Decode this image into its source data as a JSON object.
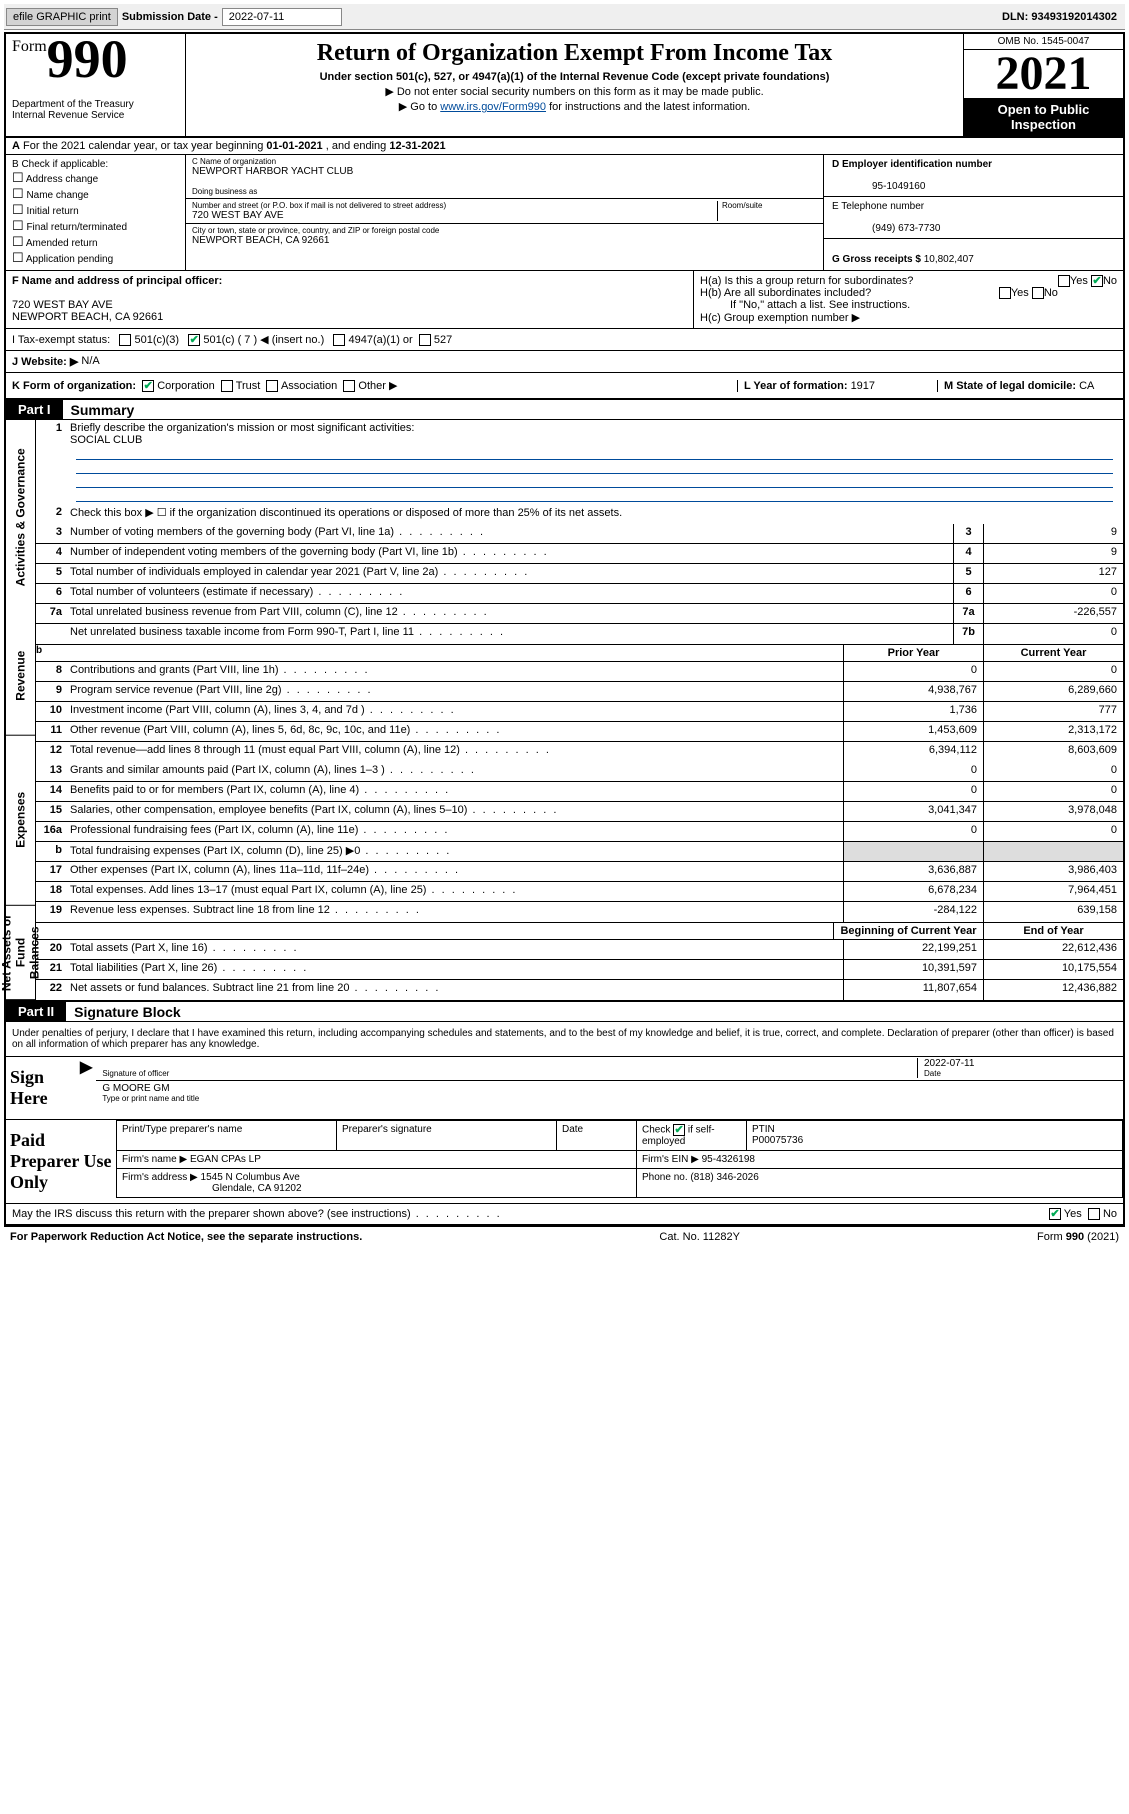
{
  "topbar": {
    "efile_btn": "efile GRAPHIC print",
    "submission_label": "Submission Date - ",
    "submission_date": "2022-07-11",
    "dln_label": "DLN: ",
    "dln": "93493192014302"
  },
  "header": {
    "form_word": "Form",
    "form_num": "990",
    "dept": "Department of the Treasury",
    "irs": "Internal Revenue Service",
    "title": "Return of Organization Exempt From Income Tax",
    "subtitle": "Under section 501(c), 527, or 4947(a)(1) of the Internal Revenue Code (except private foundations)",
    "note1": "▶ Do not enter social security numbers on this form as it may be made public.",
    "note2_pre": "▶ Go to ",
    "note2_link": "www.irs.gov/Form990",
    "note2_post": " for instructions and the latest information.",
    "omb": "OMB No. 1545-0047",
    "year": "2021",
    "inspect": "Open to Public Inspection"
  },
  "row_a": {
    "text": "For the 2021 calendar year, or tax year beginning ",
    "begin": "01-01-2021",
    "mid": " , and ending ",
    "end": "12-31-2021"
  },
  "col_b": {
    "title": "B Check if applicable:",
    "items": [
      "Address change",
      "Name change",
      "Initial return",
      "Final return/terminated",
      "Amended return",
      "Application pending"
    ]
  },
  "col_c": {
    "name_label": "C Name of organization",
    "name": "NEWPORT HARBOR YACHT CLUB",
    "dba_label": "Doing business as",
    "street_label": "Number and street (or P.O. box if mail is not delivered to street address)",
    "room_label": "Room/suite",
    "street": "720 WEST BAY AVE",
    "city_label": "City or town, state or province, country, and ZIP or foreign postal code",
    "city": "NEWPORT BEACH, CA  92661"
  },
  "col_de": {
    "d_label": "D Employer identification number",
    "d_val": "95-1049160",
    "e_label": "E Telephone number",
    "e_val": "(949) 673-7730",
    "g_label": "G Gross receipts $ ",
    "g_val": "10,802,407"
  },
  "fgh": {
    "f_label": "F Name and address of principal officer:",
    "f_addr1": "720 WEST BAY AVE",
    "f_addr2": "NEWPORT BEACH, CA  92661",
    "ha": "H(a)  Is this a group return for subordinates?",
    "hb": "H(b)  Are all subordinates included?",
    "hb_note": "If \"No,\" attach a list. See instructions.",
    "hc": "H(c)  Group exemption number ▶",
    "yes": "Yes",
    "no": "No"
  },
  "row_i": {
    "label": "I   Tax-exempt status:",
    "o1": "501(c)(3)",
    "o2": "501(c) ( 7 ) ◀ (insert no.)",
    "o3": "4947(a)(1) or",
    "o4": "527"
  },
  "row_j": {
    "label": "J   Website: ▶",
    "val": "N/A"
  },
  "row_k": {
    "label": "K Form of organization:",
    "corp": "Corporation",
    "trust": "Trust",
    "assoc": "Association",
    "other": "Other ▶",
    "l_label": "L Year of formation: ",
    "l_val": "1917",
    "m_label": "M State of legal domicile: ",
    "m_val": "CA"
  },
  "part1": {
    "tag": "Part I",
    "title": "Summary"
  },
  "vlabels": [
    "Activities & Governance",
    "Revenue",
    "Expenses",
    "Net Assets or Fund Balances"
  ],
  "mission": {
    "num": "1",
    "label": "Briefly describe the organization's mission or most significant activities:",
    "val": "SOCIAL CLUB"
  },
  "line2": {
    "num": "2",
    "text": "Check this box ▶ ☐  if the organization discontinued its operations or disposed of more than 25% of its net assets."
  },
  "govRows": [
    {
      "n": "3",
      "d": "Number of voting members of the governing body (Part VI, line 1a)",
      "b": "3",
      "v": "9"
    },
    {
      "n": "4",
      "d": "Number of independent voting members of the governing body (Part VI, line 1b)",
      "b": "4",
      "v": "9"
    },
    {
      "n": "5",
      "d": "Total number of individuals employed in calendar year 2021 (Part V, line 2a)",
      "b": "5",
      "v": "127"
    },
    {
      "n": "6",
      "d": "Total number of volunteers (estimate if necessary)",
      "b": "6",
      "v": "0"
    },
    {
      "n": "7a",
      "d": "Total unrelated business revenue from Part VIII, column (C), line 12",
      "b": "7a",
      "v": "-226,557"
    },
    {
      "n": "",
      "d": "Net unrelated business taxable income from Form 990-T, Part I, line 11",
      "b": "7b",
      "v": "0"
    }
  ],
  "colHdr": {
    "b": "b",
    "prior": "Prior Year",
    "current": "Current Year",
    "boy": "Beginning of Current Year",
    "eoy": "End of Year"
  },
  "revRows": [
    {
      "n": "8",
      "d": "Contributions and grants (Part VIII, line 1h)",
      "p": "0",
      "c": "0"
    },
    {
      "n": "9",
      "d": "Program service revenue (Part VIII, line 2g)",
      "p": "4,938,767",
      "c": "6,289,660"
    },
    {
      "n": "10",
      "d": "Investment income (Part VIII, column (A), lines 3, 4, and 7d )",
      "p": "1,736",
      "c": "777"
    },
    {
      "n": "11",
      "d": "Other revenue (Part VIII, column (A), lines 5, 6d, 8c, 9c, 10c, and 11e)",
      "p": "1,453,609",
      "c": "2,313,172"
    },
    {
      "n": "12",
      "d": "Total revenue—add lines 8 through 11 (must equal Part VIII, column (A), line 12)",
      "p": "6,394,112",
      "c": "8,603,609"
    }
  ],
  "expRows": [
    {
      "n": "13",
      "d": "Grants and similar amounts paid (Part IX, column (A), lines 1–3 )",
      "p": "0",
      "c": "0"
    },
    {
      "n": "14",
      "d": "Benefits paid to or for members (Part IX, column (A), line 4)",
      "p": "0",
      "c": "0"
    },
    {
      "n": "15",
      "d": "Salaries, other compensation, employee benefits (Part IX, column (A), lines 5–10)",
      "p": "3,041,347",
      "c": "3,978,048"
    },
    {
      "n": "16a",
      "d": "Professional fundraising fees (Part IX, column (A), line 11e)",
      "p": "0",
      "c": "0"
    },
    {
      "n": "b",
      "d": "Total fundraising expenses (Part IX, column (D), line 25) ▶0",
      "p": "",
      "c": "",
      "grey": true
    },
    {
      "n": "17",
      "d": "Other expenses (Part IX, column (A), lines 11a–11d, 11f–24e)",
      "p": "3,636,887",
      "c": "3,986,403"
    },
    {
      "n": "18",
      "d": "Total expenses. Add lines 13–17 (must equal Part IX, column (A), line 25)",
      "p": "6,678,234",
      "c": "7,964,451"
    },
    {
      "n": "19",
      "d": "Revenue less expenses. Subtract line 18 from line 12",
      "p": "-284,122",
      "c": "639,158"
    }
  ],
  "netRows": [
    {
      "n": "20",
      "d": "Total assets (Part X, line 16)",
      "p": "22,199,251",
      "c": "22,612,436"
    },
    {
      "n": "21",
      "d": "Total liabilities (Part X, line 26)",
      "p": "10,391,597",
      "c": "10,175,554"
    },
    {
      "n": "22",
      "d": "Net assets or fund balances. Subtract line 21 from line 20",
      "p": "11,807,654",
      "c": "12,436,882"
    }
  ],
  "part2": {
    "tag": "Part II",
    "title": "Signature Block"
  },
  "penalty": "Under penalties of perjury, I declare that I have examined this return, including accompanying schedules and statements, and to the best of my knowledge and belief, it is true, correct, and complete. Declaration of preparer (other than officer) is based on all information of which preparer has any knowledge.",
  "sign": {
    "here": "Sign Here",
    "sig_officer": "Signature of officer",
    "date_label": "Date",
    "date": "2022-07-11",
    "name": "G MOORE GM",
    "name_label": "Type or print name and title"
  },
  "prep": {
    "label": "Paid Preparer Use Only",
    "h1": "Print/Type preparer's name",
    "h2": "Preparer's signature",
    "h3": "Date",
    "check_label": "Check ",
    "check_suffix": " if self-employed",
    "ptin_label": "PTIN",
    "ptin": "P00075736",
    "firm_name_label": "Firm's name    ▶ ",
    "firm_name": "EGAN CPAs LP",
    "firm_ein_label": "Firm's EIN ▶ ",
    "firm_ein": "95-4326198",
    "firm_addr_label": "Firm's address ▶ ",
    "firm_addr1": "1545 N Columbus Ave",
    "firm_addr2": "Glendale, CA  91202",
    "phone_label": "Phone no. ",
    "phone": "(818) 346-2026"
  },
  "may_discuss": "May the IRS discuss this return with the preparer shown above? (see instructions)",
  "footer": {
    "pra": "For Paperwork Reduction Act Notice, see the separate instructions.",
    "cat": "Cat. No. 11282Y",
    "form": "Form 990 (2021)"
  },
  "colors": {
    "link": "#004b9b",
    "check": "#00aa55",
    "grey": "#dddddd"
  }
}
